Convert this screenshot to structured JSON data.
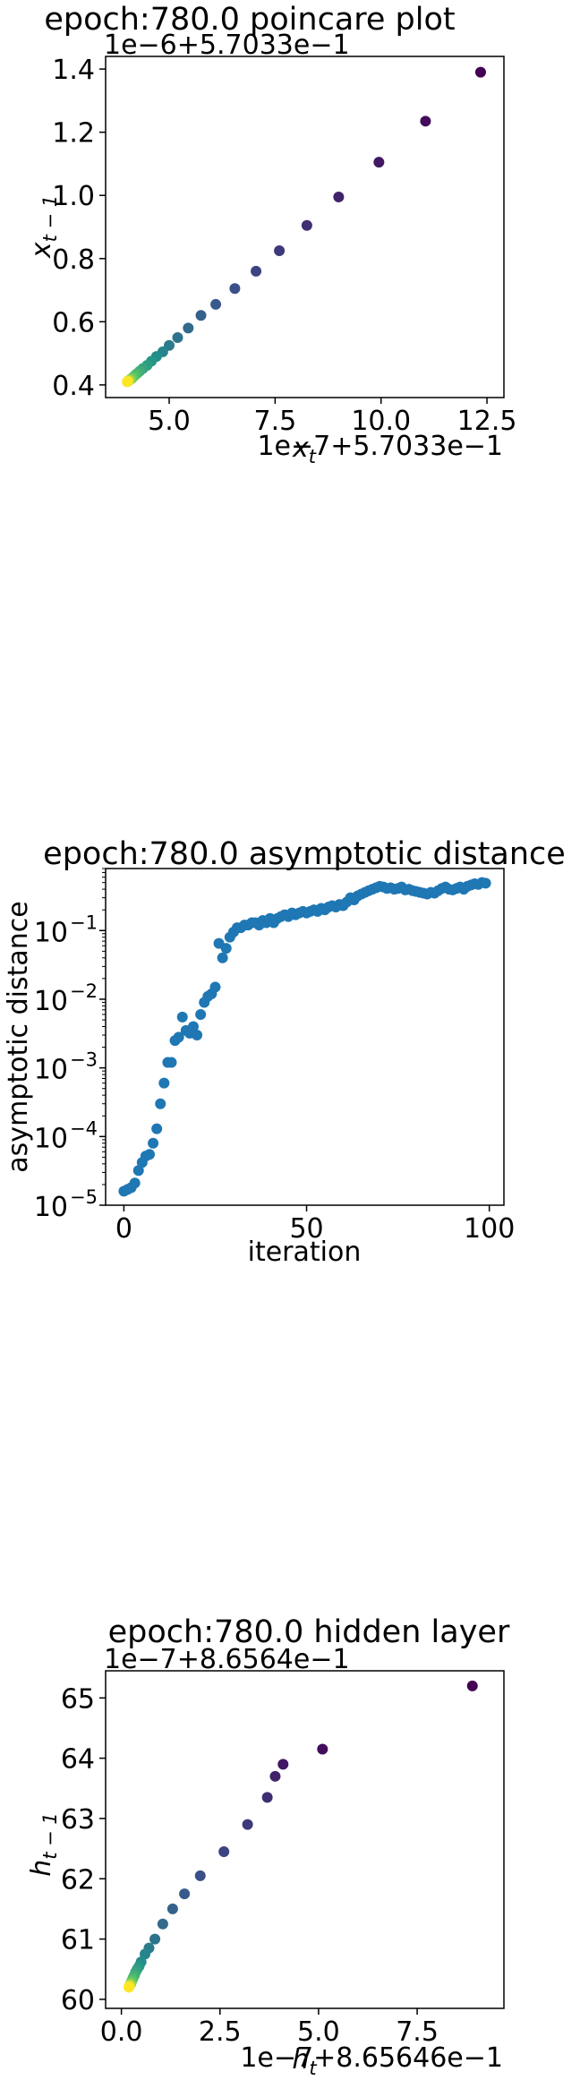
{
  "chart_data": [
    {
      "type": "scatter",
      "title": "epoch:780.0 poincare plot",
      "xlabel": "x_t",
      "ylabel": "x_{t-1}",
      "x_offset_text": "1e−7+5.7033e−1",
      "y_offset_text": "1e−6+5.7033e−1",
      "xlim": [
        3.5,
        12.9
      ],
      "ylim": [
        0.36,
        1.44
      ],
      "xticks": [
        5.0,
        7.5,
        10.0,
        12.5
      ],
      "xtick_labels": [
        "5.0",
        "7.5",
        "10.0",
        "12.5"
      ],
      "yticks": [
        0.4,
        0.6,
        0.8,
        1.0,
        1.2,
        1.4
      ],
      "ytick_labels": [
        "0.4",
        "0.6",
        "0.8",
        "1.0",
        "1.2",
        "1.4"
      ],
      "colormap": "viridis",
      "points": [
        [
          12.35,
          1.39
        ],
        [
          11.05,
          1.235
        ],
        [
          9.95,
          1.105
        ],
        [
          9.0,
          0.995
        ],
        [
          8.25,
          0.905
        ],
        [
          7.6,
          0.825
        ],
        [
          7.05,
          0.76
        ],
        [
          6.55,
          0.705
        ],
        [
          6.1,
          0.655
        ],
        [
          5.75,
          0.62
        ],
        [
          5.45,
          0.58
        ],
        [
          5.2,
          0.55
        ],
        [
          5.0,
          0.525
        ],
        [
          4.85,
          0.505
        ],
        [
          4.7,
          0.49
        ],
        [
          4.58,
          0.475
        ],
        [
          4.48,
          0.462
        ],
        [
          4.38,
          0.452
        ],
        [
          4.3,
          0.443
        ],
        [
          4.24,
          0.436
        ],
        [
          4.19,
          0.43
        ],
        [
          4.15,
          0.425
        ],
        [
          4.12,
          0.421
        ],
        [
          4.09,
          0.418
        ],
        [
          4.07,
          0.416
        ],
        [
          4.05,
          0.414
        ],
        [
          4.04,
          0.413
        ],
        [
          4.03,
          0.412
        ],
        [
          4.02,
          0.411
        ],
        [
          4.01,
          0.41
        ]
      ]
    },
    {
      "type": "scatter",
      "title": "epoch:780.0 asymptotic distance",
      "xlabel": "iteration",
      "ylabel": "asymptotic distance",
      "yscale": "log",
      "xlim": [
        -5,
        104
      ],
      "ylim": [
        1e-05,
        0.8
      ],
      "xticks": [
        0,
        50,
        100
      ],
      "xtick_labels": [
        "0",
        "50",
        "100"
      ],
      "yticks": [
        1e-05,
        0.0001,
        0.001,
        0.01,
        0.1
      ],
      "ytick_labels": [
        "10",
        "10",
        "10",
        "10",
        "10"
      ],
      "ytick_exponents": [
        "−5",
        "−4",
        "−3",
        "−2",
        "−1"
      ],
      "color": "#1f77b4",
      "x": [
        0,
        1,
        2,
        3,
        4,
        5,
        6,
        7,
        8,
        9,
        10,
        11,
        12,
        13,
        14,
        15,
        16,
        17,
        18,
        19,
        20,
        21,
        22,
        23,
        24,
        25,
        26,
        27,
        28,
        29,
        30,
        31,
        32,
        33,
        34,
        35,
        36,
        37,
        38,
        39,
        40,
        41,
        42,
        43,
        44,
        45,
        46,
        47,
        48,
        49,
        50,
        51,
        52,
        53,
        54,
        55,
        56,
        57,
        58,
        59,
        60,
        61,
        62,
        63,
        64,
        65,
        66,
        67,
        68,
        69,
        70,
        71,
        72,
        73,
        74,
        75,
        76,
        77,
        78,
        79,
        80,
        81,
        82,
        83,
        84,
        85,
        86,
        87,
        88,
        89,
        90,
        91,
        92,
        93,
        94,
        95,
        96,
        97,
        98,
        99
      ],
      "y": [
        1.6e-05,
        1.7e-05,
        1.8e-05,
        2.1e-05,
        3.2e-05,
        4.2e-05,
        5.2e-05,
        5.5e-05,
        8e-05,
        0.00013,
        0.0003,
        0.0006,
        0.0012,
        0.0012,
        0.0025,
        0.0028,
        0.0055,
        0.0035,
        0.0032,
        0.004,
        0.003,
        0.006,
        0.009,
        0.011,
        0.012,
        0.015,
        0.065,
        0.04,
        0.055,
        0.08,
        0.095,
        0.11,
        0.11,
        0.12,
        0.12,
        0.13,
        0.13,
        0.12,
        0.14,
        0.13,
        0.15,
        0.13,
        0.15,
        0.16,
        0.17,
        0.16,
        0.18,
        0.17,
        0.18,
        0.19,
        0.18,
        0.19,
        0.2,
        0.19,
        0.21,
        0.2,
        0.22,
        0.23,
        0.22,
        0.24,
        0.23,
        0.26,
        0.3,
        0.28,
        0.32,
        0.34,
        0.36,
        0.38,
        0.4,
        0.42,
        0.44,
        0.43,
        0.41,
        0.42,
        0.4,
        0.41,
        0.43,
        0.39,
        0.4,
        0.38,
        0.37,
        0.36,
        0.35,
        0.34,
        0.36,
        0.35,
        0.38,
        0.41,
        0.43,
        0.4,
        0.39,
        0.41,
        0.43,
        0.4,
        0.44,
        0.46,
        0.48,
        0.47,
        0.5,
        0.49
      ]
    },
    {
      "type": "scatter",
      "title": "epoch:780.0 hidden layer",
      "xlabel": "h_t",
      "ylabel": "h_{t-1}",
      "x_offset_text": "1e−7+8.65646e−1",
      "y_offset_text": "1e−7+8.6564e−1",
      "xlim": [
        -0.4,
        9.7
      ],
      "ylim": [
        59.85,
        65.45
      ],
      "xticks": [
        0.0,
        2.5,
        5.0,
        7.5
      ],
      "xtick_labels": [
        "0.0",
        "2.5",
        "5.0",
        "7.5"
      ],
      "yticks": [
        60,
        61,
        62,
        63,
        64,
        65
      ],
      "ytick_labels": [
        "60",
        "61",
        "62",
        "63",
        "64",
        "65"
      ],
      "colormap": "viridis",
      "points": [
        [
          8.9,
          65.2
        ],
        [
          5.1,
          64.15
        ],
        [
          4.1,
          63.9
        ],
        [
          3.9,
          63.7
        ],
        [
          3.7,
          63.35
        ],
        [
          3.2,
          62.9
        ],
        [
          2.6,
          62.45
        ],
        [
          2.0,
          62.05
        ],
        [
          1.6,
          61.75
        ],
        [
          1.3,
          61.5
        ],
        [
          1.05,
          61.25
        ],
        [
          0.85,
          61.0
        ],
        [
          0.7,
          60.85
        ],
        [
          0.6,
          60.75
        ],
        [
          0.5,
          60.62
        ],
        [
          0.45,
          60.55
        ],
        [
          0.4,
          60.5
        ],
        [
          0.36,
          60.45
        ],
        [
          0.33,
          60.4
        ],
        [
          0.3,
          60.36
        ],
        [
          0.28,
          60.33
        ],
        [
          0.26,
          60.3
        ],
        [
          0.25,
          60.28
        ],
        [
          0.24,
          60.26
        ],
        [
          0.23,
          60.25
        ],
        [
          0.22,
          60.24
        ],
        [
          0.21,
          60.23
        ],
        [
          0.2,
          60.22
        ],
        [
          0.2,
          60.21
        ],
        [
          0.19,
          60.2
        ]
      ]
    }
  ]
}
